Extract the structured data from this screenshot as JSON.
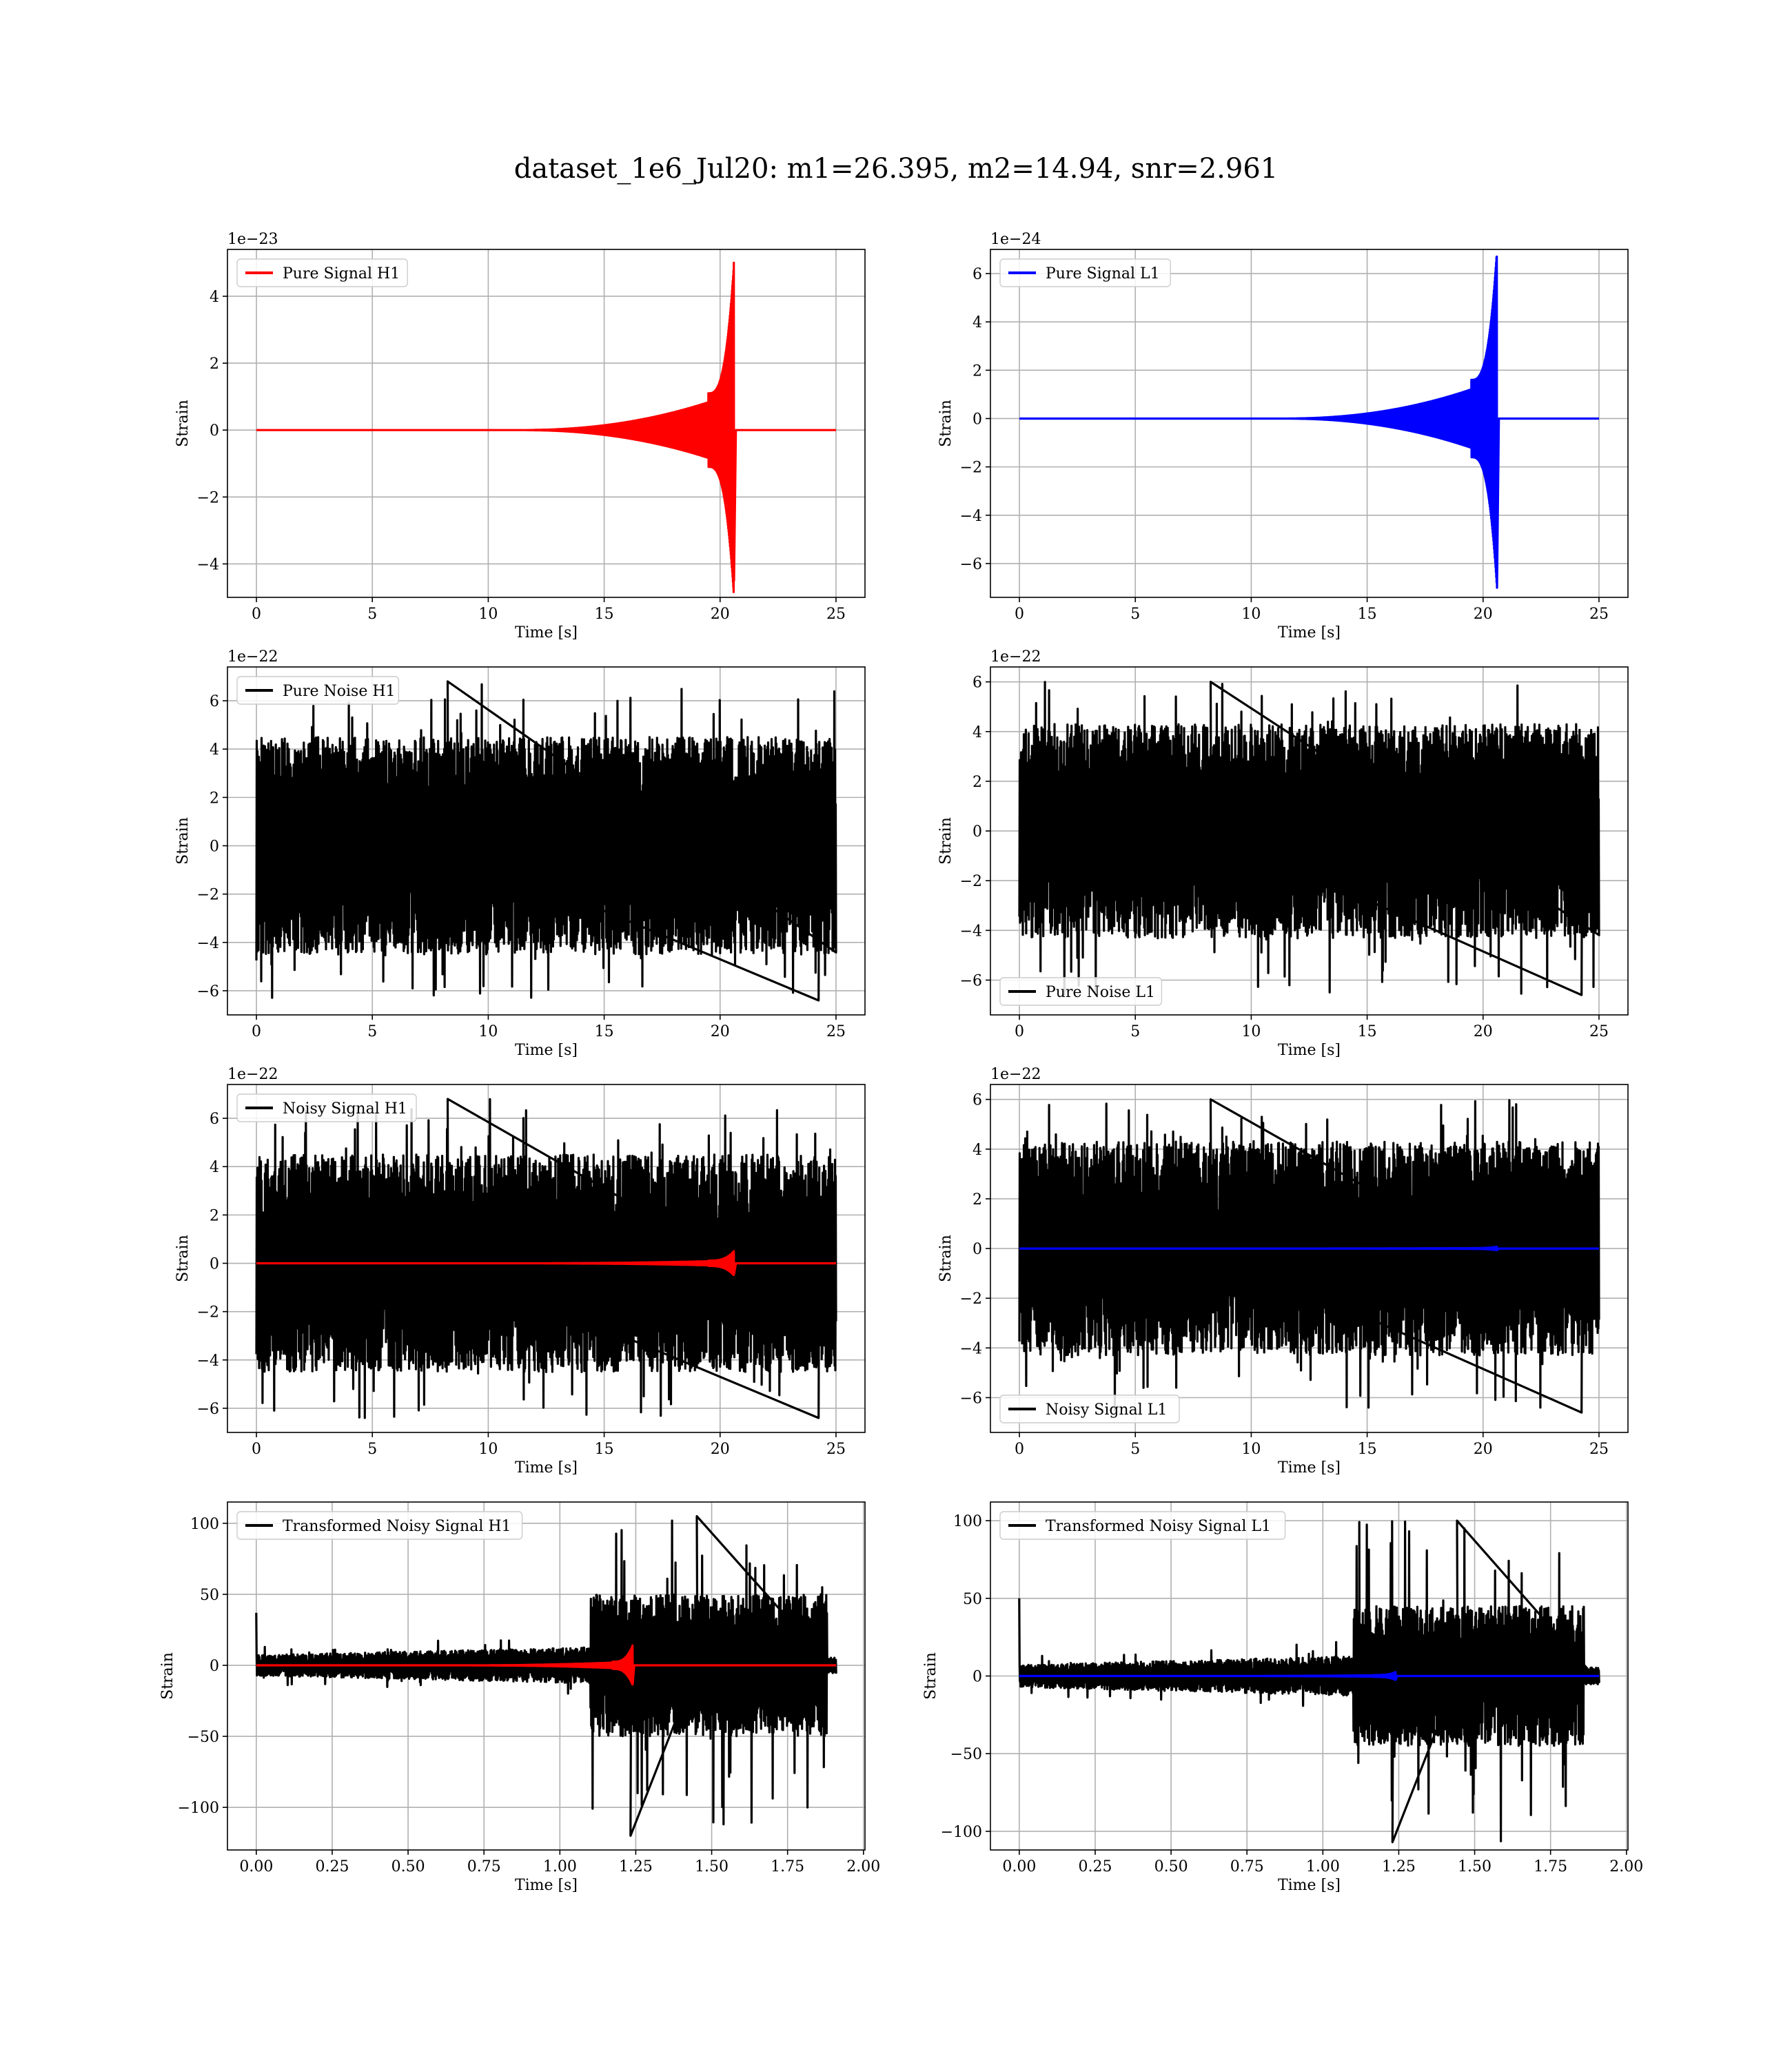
{
  "figure": {
    "title": "dataset_1e6_Jul20: m1=26.395, m2=14.94, snr=2.961"
  },
  "colors": {
    "h1_signal": "#ff0000",
    "l1_signal": "#0000ff",
    "noise": "#000000",
    "grid": "#b0b0b0"
  },
  "chart_data": [
    {
      "id": "pure-signal-h1",
      "type": "line",
      "xlabel": "Time [s]",
      "ylabel": "Strain",
      "offset_text": "1e−23",
      "legend_position": "top-left",
      "xlim": [
        -1.25,
        26.25
      ],
      "ylim": [
        -5.0,
        5.4
      ],
      "xticks": [
        0,
        5,
        10,
        15,
        20,
        25
      ],
      "xtick_labels": [
        "0",
        "5",
        "10",
        "15",
        "20",
        "25"
      ],
      "yticks": [
        -4,
        -2,
        0,
        2,
        4
      ],
      "ytick_labels": [
        "−4",
        "−2",
        "0",
        "2",
        "4"
      ],
      "series": [
        {
          "name": "Pure Signal H1",
          "color": "#ff0000",
          "kind": "chirp",
          "t_start": 0,
          "t_end": 25,
          "t_merger": 20.6,
          "peak_pos": 5.0,
          "peak_neg": -4.5,
          "late_amp": 1.1
        }
      ]
    },
    {
      "id": "pure-signal-l1",
      "type": "line",
      "xlabel": "Time [s]",
      "ylabel": "Strain",
      "offset_text": "1e−24",
      "legend_position": "top-left",
      "xlim": [
        -1.25,
        26.25
      ],
      "ylim": [
        -7.4,
        7.0
      ],
      "xticks": [
        0,
        5,
        10,
        15,
        20,
        25
      ],
      "xtick_labels": [
        "0",
        "5",
        "10",
        "15",
        "20",
        "25"
      ],
      "yticks": [
        -6,
        -4,
        -2,
        0,
        2,
        4,
        6
      ],
      "ytick_labels": [
        "−6",
        "−4",
        "−2",
        "0",
        "2",
        "4",
        "6"
      ],
      "series": [
        {
          "name": "Pure Signal L1",
          "color": "#0000ff",
          "kind": "chirp",
          "t_start": 0,
          "t_end": 25,
          "t_merger": 20.6,
          "peak_pos": 6.7,
          "peak_neg": -7.0,
          "late_amp": 1.6
        }
      ]
    },
    {
      "id": "pure-noise-h1",
      "type": "line",
      "xlabel": "Time [s]",
      "ylabel": "Strain",
      "offset_text": "1e−22",
      "legend_position": "top-left",
      "xlim": [
        -1.25,
        26.25
      ],
      "ylim": [
        -7.0,
        7.4
      ],
      "xticks": [
        0,
        5,
        10,
        15,
        20,
        25
      ],
      "xtick_labels": [
        "0",
        "5",
        "10",
        "15",
        "20",
        "25"
      ],
      "yticks": [
        -6,
        -4,
        -2,
        0,
        2,
        4,
        6
      ],
      "ytick_labels": [
        "−6",
        "−4",
        "−2",
        "0",
        "2",
        "4",
        "6"
      ],
      "series": [
        {
          "name": "Pure Noise H1",
          "color": "#000000",
          "kind": "noise",
          "t_start": 0,
          "t_end": 25,
          "max": 6.8,
          "min": -6.4,
          "typical": 4.5
        }
      ]
    },
    {
      "id": "pure-noise-l1",
      "type": "line",
      "xlabel": "Time [s]",
      "ylabel": "Strain",
      "offset_text": "1e−22",
      "legend_position": "bottom-left",
      "xlim": [
        -1.25,
        26.25
      ],
      "ylim": [
        -7.4,
        6.6
      ],
      "xticks": [
        0,
        5,
        10,
        15,
        20,
        25
      ],
      "xtick_labels": [
        "0",
        "5",
        "10",
        "15",
        "20",
        "25"
      ],
      "yticks": [
        -6,
        -4,
        -2,
        0,
        2,
        4,
        6
      ],
      "ytick_labels": [
        "−6",
        "−4",
        "−2",
        "0",
        "2",
        "4",
        "6"
      ],
      "series": [
        {
          "name": "Pure Noise L1",
          "color": "#000000",
          "kind": "noise",
          "t_start": 0,
          "t_end": 25,
          "max": 6.0,
          "min": -6.6,
          "typical": 4.3
        }
      ]
    },
    {
      "id": "noisy-signal-h1",
      "type": "line",
      "xlabel": "Time [s]",
      "ylabel": "Strain",
      "offset_text": "1e−22",
      "legend_position": "top-left",
      "xlim": [
        -1.25,
        26.25
      ],
      "ylim": [
        -7.0,
        7.4
      ],
      "xticks": [
        0,
        5,
        10,
        15,
        20,
        25
      ],
      "xtick_labels": [
        "0",
        "5",
        "10",
        "15",
        "20",
        "25"
      ],
      "yticks": [
        -6,
        -4,
        -2,
        0,
        2,
        4,
        6
      ],
      "ytick_labels": [
        "−6",
        "−4",
        "−2",
        "0",
        "2",
        "4",
        "6"
      ],
      "series": [
        {
          "name": "Noisy Signal H1",
          "color": "#000000",
          "kind": "noise",
          "t_start": 0,
          "t_end": 25,
          "max": 6.8,
          "min": -6.4,
          "typical": 4.5
        },
        {
          "name": "",
          "color": "#ff0000",
          "kind": "chirp",
          "t_start": 0,
          "t_end": 25,
          "t_merger": 20.6,
          "peak_pos": 0.5,
          "peak_neg": -0.45,
          "late_amp": 0.11
        }
      ]
    },
    {
      "id": "noisy-signal-l1",
      "type": "line",
      "xlabel": "Time [s]",
      "ylabel": "Strain",
      "offset_text": "1e−22",
      "legend_position": "bottom-left",
      "xlim": [
        -1.25,
        26.25
      ],
      "ylim": [
        -7.4,
        6.6
      ],
      "xticks": [
        0,
        5,
        10,
        15,
        20,
        25
      ],
      "xtick_labels": [
        "0",
        "5",
        "10",
        "15",
        "20",
        "25"
      ],
      "yticks": [
        -6,
        -4,
        -2,
        0,
        2,
        4,
        6
      ],
      "ytick_labels": [
        "−6",
        "−4",
        "−2",
        "0",
        "2",
        "4",
        "6"
      ],
      "series": [
        {
          "name": "Noisy Signal L1",
          "color": "#000000",
          "kind": "noise",
          "t_start": 0,
          "t_end": 25,
          "max": 6.0,
          "min": -6.6,
          "typical": 4.3
        },
        {
          "name": "",
          "color": "#0000ff",
          "kind": "chirp",
          "t_start": 0,
          "t_end": 25,
          "t_merger": 20.6,
          "peak_pos": 0.07,
          "peak_neg": -0.07,
          "late_amp": 0.016
        }
      ]
    },
    {
      "id": "transformed-noisy-signal-h1",
      "type": "line",
      "xlabel": "Time [s]",
      "ylabel": "Strain",
      "offset_text": "",
      "legend_position": "top-left",
      "xlim": [
        -0.095,
        2.005
      ],
      "ylim": [
        -130,
        115
      ],
      "xticks": [
        0,
        0.25,
        0.5,
        0.75,
        1.0,
        1.25,
        1.5,
        1.75,
        2.0
      ],
      "xtick_labels": [
        "0.00",
        "0.25",
        "0.50",
        "0.75",
        "1.00",
        "1.25",
        "1.50",
        "1.75",
        "2.00"
      ],
      "yticks": [
        -100,
        -50,
        0,
        50,
        100
      ],
      "ytick_labels": [
        "−100",
        "−50",
        "0",
        "50",
        "100"
      ],
      "series": [
        {
          "name": "Transformed Noisy Signal H1",
          "color": "#000000",
          "kind": "whitened",
          "t_start": 0,
          "t_end": 1.91,
          "t_jump": 1.1,
          "t_drop": 1.88,
          "early_amp": 9,
          "late_amp": 50,
          "max": 105,
          "min": -120,
          "spike": 37
        },
        {
          "name": "",
          "color": "#ff0000",
          "kind": "chirp",
          "t_start": 0,
          "t_end": 1.91,
          "t_merger": 1.24,
          "peak_pos": 14,
          "peak_neg": -13,
          "late_amp": 2.5
        }
      ]
    },
    {
      "id": "transformed-noisy-signal-l1",
      "type": "line",
      "xlabel": "Time [s]",
      "ylabel": "Strain",
      "offset_text": "",
      "legend_position": "top-left",
      "xlim": [
        -0.095,
        2.005
      ],
      "ylim": [
        -112,
        112
      ],
      "xticks": [
        0,
        0.25,
        0.5,
        0.75,
        1.0,
        1.25,
        1.5,
        1.75,
        2.0
      ],
      "xtick_labels": [
        "0.00",
        "0.25",
        "0.50",
        "0.75",
        "1.00",
        "1.25",
        "1.50",
        "1.75",
        "2.00"
      ],
      "yticks": [
        -100,
        -50,
        0,
        50,
        100
      ],
      "ytick_labels": [
        "−100",
        "−50",
        "0",
        "50",
        "100"
      ],
      "series": [
        {
          "name": "Transformed Noisy Signal L1",
          "color": "#000000",
          "kind": "whitened",
          "t_start": 0,
          "t_end": 1.91,
          "t_jump": 1.1,
          "t_drop": 1.86,
          "early_amp": 9,
          "late_amp": 45,
          "max": 100,
          "min": -107,
          "spike": 50
        },
        {
          "name": "",
          "color": "#0000ff",
          "kind": "chirp",
          "t_start": 0,
          "t_end": 1.91,
          "t_merger": 1.24,
          "peak_pos": 2.5,
          "peak_neg": -2.5,
          "late_amp": 0.6
        }
      ]
    }
  ]
}
